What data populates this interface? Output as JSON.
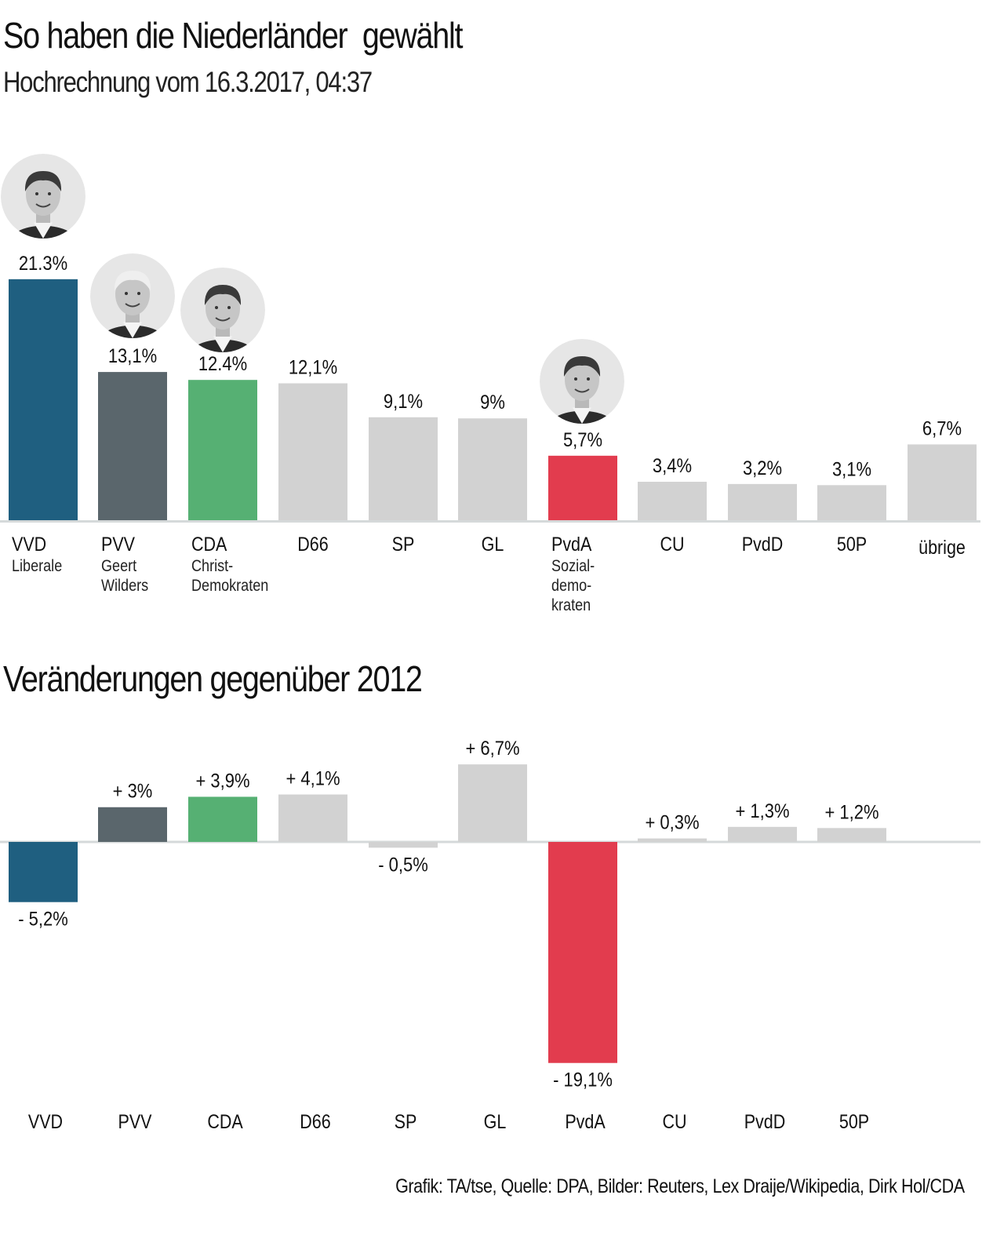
{
  "header": {
    "title": "So haben die Niederländer  gewählt",
    "subtitle": "Hochrechnung vom 16.3.2017, 04:37"
  },
  "section2": {
    "title": "Veränderungen gegenüber 2012"
  },
  "footer": {
    "credit": "Grafik: TA/tse, Quelle: DPA, Bilder: Reuters, Lex Draije/Wikipedia, Dirk Hol/CDA"
  },
  "colors": {
    "VVD": "#1f5f80",
    "PVV": "#5a666c",
    "CDA": "#56b073",
    "PvdA": "#e23c4e",
    "other": "#d2d2d2",
    "axis": "#d5d9da"
  },
  "portraits": [
    {
      "party": "VVD",
      "icon": "portrait-photo-icon"
    },
    {
      "party": "PVV",
      "icon": "portrait-photo-icon"
    },
    {
      "party": "CDA",
      "icon": "portrait-photo-icon"
    },
    {
      "party": "PvdA",
      "icon": "portrait-photo-icon"
    }
  ],
  "chart_data": [
    {
      "type": "bar",
      "title": "So haben die Niederländer  gewählt",
      "subtitle": "Hochrechnung vom 16.3.2017, 04:37",
      "xlabel": "",
      "ylabel": "",
      "ylim": [
        0,
        22
      ],
      "grid": false,
      "categories": [
        "VVD",
        "PVV",
        "CDA",
        "D66",
        "SP",
        "GL",
        "PvdA",
        "CU",
        "PvdD",
        "50P",
        "übrige"
      ],
      "sublabels": [
        [
          "Liberale"
        ],
        [
          "Geert",
          "Wilders"
        ],
        [
          "Christ-",
          "Demokraten"
        ],
        [],
        [],
        [],
        [
          "Sozial-",
          "demo-",
          "kraten"
        ],
        [],
        [],
        [],
        []
      ],
      "values": [
        21.3,
        13.1,
        12.4,
        12.1,
        9.1,
        9.0,
        5.7,
        3.4,
        3.2,
        3.1,
        6.7
      ],
      "value_labels": [
        "21.3%",
        "13,1%",
        "12.4%",
        "12,1%",
        "9,1%",
        "9%",
        "5,7%",
        "3,4%",
        "3,2%",
        "3,1%",
        "6,7%"
      ]
    },
    {
      "type": "bar",
      "title": "Veränderungen gegenüber 2012",
      "xlabel": "",
      "ylabel": "",
      "ylim": [
        -20,
        8
      ],
      "grid": false,
      "categories": [
        "VVD",
        "PVV",
        "CDA",
        "D66",
        "SP",
        "GL",
        "PvdA",
        "CU",
        "PvdD",
        "50P"
      ],
      "values": [
        -5.2,
        3.0,
        3.9,
        4.1,
        -0.5,
        6.7,
        -19.1,
        0.3,
        1.3,
        1.2
      ],
      "value_labels": [
        "- 5,2%",
        "+ 3%",
        "+ 3,9%",
        "+ 4,1%",
        "- 0,5%",
        "+ 6,7%",
        "- 19,1%",
        "+ 0,3%",
        "+ 1,3%",
        "+ 1,2%"
      ]
    }
  ]
}
